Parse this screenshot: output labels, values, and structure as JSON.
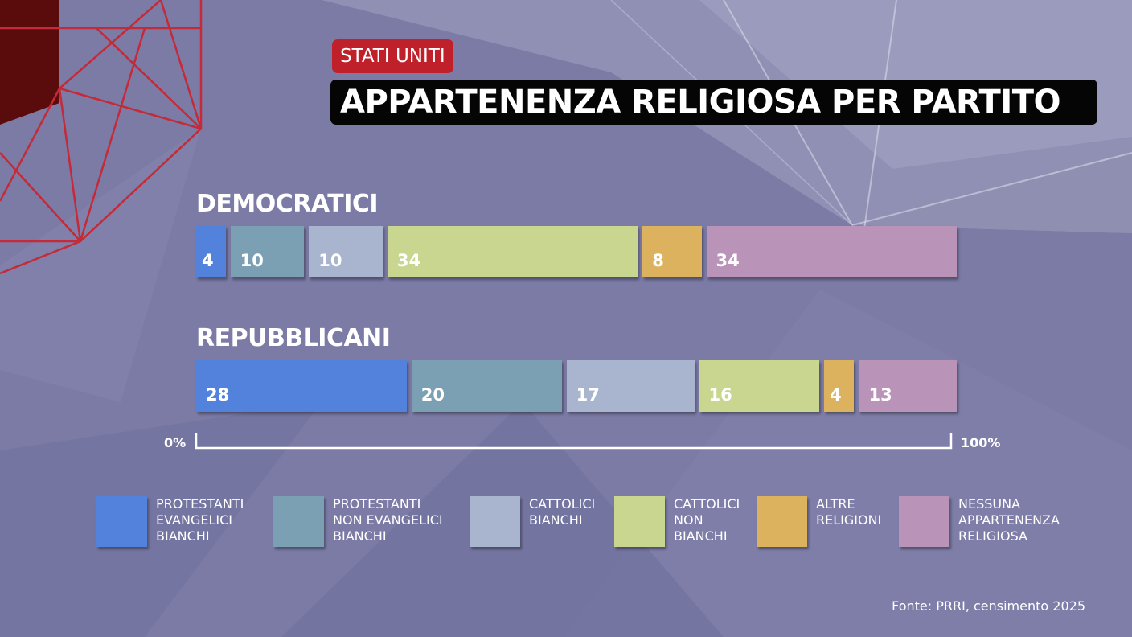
{
  "header": {
    "tag": "STATI UNITI",
    "title": "APPARTENENZA RELIGIOSA PER PARTITO"
  },
  "source": "Fonte: PRRI, censimento 2025",
  "chart_data": {
    "type": "bar",
    "stacked": true,
    "orientation": "horizontal",
    "categories": [
      "DEMOCRATICI",
      "REPUBBLICANI"
    ],
    "series": [
      {
        "name": "PROTESTANTI EVANGELICI BIANCHI",
        "label_lines": [
          "PROTESTANTI",
          "EVANGELICI",
          "BIANCHI"
        ],
        "color": "#5282dc",
        "values": [
          4,
          28
        ]
      },
      {
        "name": "PROTESTANTI NON EVANGELICI BIANCHI",
        "label_lines": [
          "PROTESTANTI",
          "NON EVANGELICI",
          "BIANCHI"
        ],
        "color": "#7ba0b4",
        "values": [
          10,
          20
        ]
      },
      {
        "name": "CATTOLICI BIANCHI",
        "label_lines": [
          "CATTOLICI",
          "BIANCHI"
        ],
        "color": "#a9b5cf",
        "values": [
          10,
          17
        ]
      },
      {
        "name": "CATTOLICI NON BIANCHI",
        "label_lines": [
          "CATTOLICI",
          "NON",
          "BIANCHI"
        ],
        "color": "#c8d68f",
        "values": [
          34,
          16
        ]
      },
      {
        "name": "ALTRE RELIGIONI",
        "label_lines": [
          "ALTRE",
          "RELIGIONI"
        ],
        "color": "#ddb25f",
        "values": [
          8,
          4
        ]
      },
      {
        "name": "NESSUNA APPARTENENZA RELIGIOSA",
        "label_lines": [
          "NESSUNA",
          "APPARTENENZA",
          "RELIGIOSA"
        ],
        "color": "#b993b8",
        "values": [
          34,
          13
        ]
      }
    ],
    "xlim": [
      0,
      100
    ],
    "axis_labels": {
      "min": "0%",
      "max": "100%"
    },
    "legend": "bottom"
  }
}
